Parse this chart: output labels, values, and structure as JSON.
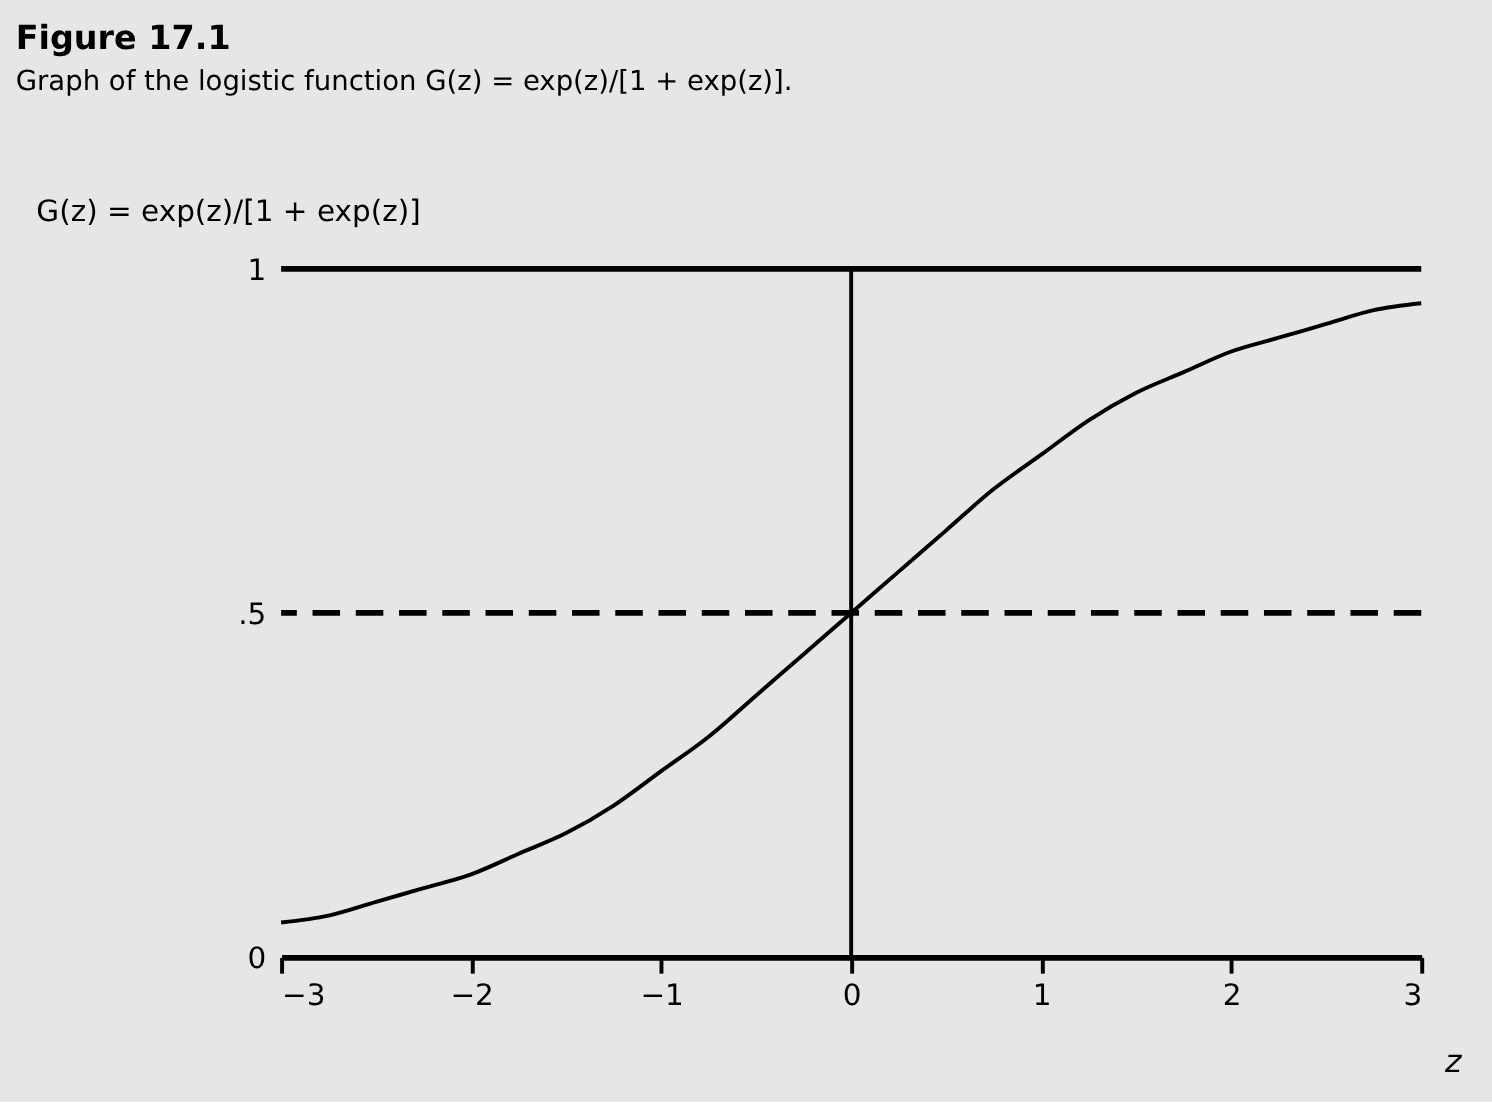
{
  "chart_data": {
    "type": "line",
    "title": "Figure 17.1",
    "subtitle": "Graph of the logistic function G(z) = exp(z)/[1 + exp(z)].",
    "ylabel": "G(z) = exp(z)/[1 + exp(z)]",
    "xlabel": "z",
    "x": [
      -3,
      -2.75,
      -2.5,
      -2.25,
      -2,
      -1.75,
      -1.5,
      -1.25,
      -1,
      -0.75,
      -0.5,
      -0.25,
      0,
      0.25,
      0.5,
      0.75,
      1,
      1.25,
      1.5,
      1.75,
      2,
      2.25,
      2.5,
      2.75,
      3
    ],
    "series": [
      {
        "color": "#000000",
        "values": [
          0.05,
          0.06,
          0.08,
          0.1,
          0.12,
          0.15,
          0.18,
          0.22,
          0.27,
          0.32,
          0.38,
          0.44,
          0.5,
          0.56,
          0.62,
          0.68,
          0.73,
          0.78,
          0.82,
          0.85,
          0.88,
          0.9,
          0.92,
          0.94,
          0.95
        ]
      }
    ],
    "xlim": [
      -3,
      3
    ],
    "ylim": [
      0,
      1
    ],
    "xticks": [
      -3,
      -2,
      -1,
      0,
      1,
      2,
      3
    ],
    "yticks": [
      0,
      {
        "value": 0.5,
        "label": ".5"
      },
      1
    ],
    "ref_lines": [
      {
        "axis": "y",
        "value": 1,
        "color": "#000000",
        "line_style": "solid"
      },
      {
        "axis": "y",
        "value": 0.5,
        "color": "#000000",
        "line_style": "dashed"
      },
      {
        "axis": "x",
        "value": 0,
        "color": "#000000",
        "line_style": "solid"
      }
    ],
    "grid": false,
    "marker": "none",
    "line_style": "solid"
  }
}
